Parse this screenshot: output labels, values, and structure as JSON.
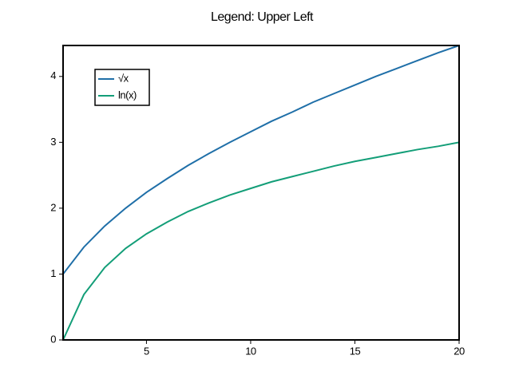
{
  "chart_data": {
    "type": "line",
    "title": "Legend: Upper Left",
    "x": [
      1,
      2,
      3,
      4,
      5,
      6,
      7,
      8,
      9,
      10,
      11,
      12,
      13,
      14,
      15,
      16,
      17,
      18,
      19,
      20
    ],
    "series": [
      {
        "name": "√x",
        "color": "#1f6fa8",
        "values": [
          1,
          1.41,
          1.73,
          2,
          2.24,
          2.45,
          2.65,
          2.83,
          3,
          3.16,
          3.32,
          3.46,
          3.61,
          3.74,
          3.87,
          4,
          4.12,
          4.24,
          4.36,
          4.47
        ]
      },
      {
        "name": "ln(x)",
        "color": "#139e78",
        "values": [
          0,
          0.69,
          1.1,
          1.39,
          1.61,
          1.79,
          1.95,
          2.08,
          2.2,
          2.3,
          2.4,
          2.48,
          2.56,
          2.64,
          2.71,
          2.77,
          2.83,
          2.89,
          2.94,
          3
        ]
      }
    ],
    "xlim": [
      1,
      20
    ],
    "ylim": [
      0,
      4.47
    ],
    "xticks": [
      5,
      10,
      15,
      20
    ],
    "yticks": [
      0,
      1,
      2,
      3,
      4
    ],
    "legend": "upper left"
  }
}
